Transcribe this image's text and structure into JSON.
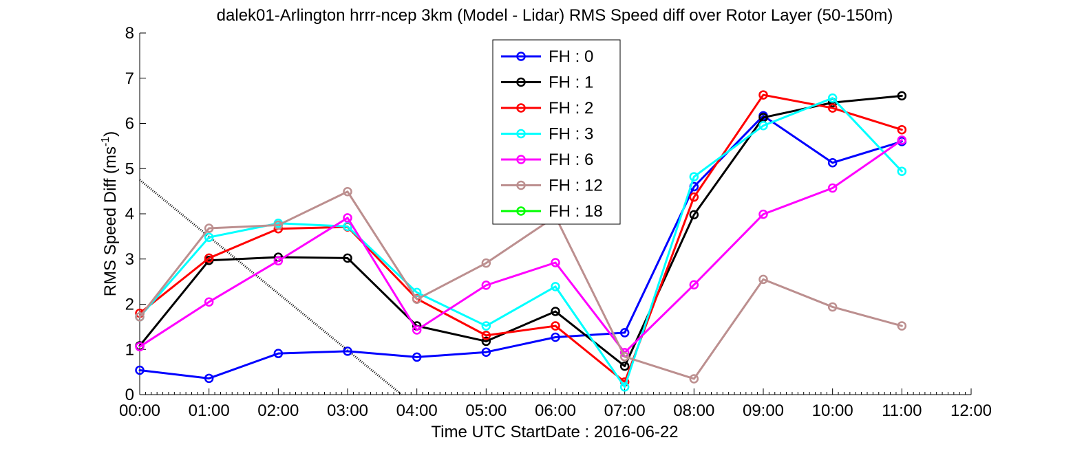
{
  "chart_data": {
    "type": "line",
    "title": "dalek01-Arlington hrrr-ncep 3km (Model - Lidar) RMS Speed diff over Rotor Layer (50-150m)",
    "xlabel": "Time UTC    StartDate : 2016-06-22",
    "ylabel": {
      "main": "RMS Speed Diff (ms",
      "superscript": "-1",
      "close": ")"
    },
    "xlim": [
      0,
      12
    ],
    "ylim": [
      0,
      8
    ],
    "x_ticks": [
      0,
      1,
      2,
      3,
      4,
      5,
      6,
      7,
      8,
      9,
      10,
      11,
      12
    ],
    "x_tick_labels": [
      "00:00",
      "01:00",
      "02:00",
      "03:00",
      "04:00",
      "05:00",
      "06:00",
      "07:00",
      "08:00",
      "09:00",
      "10:00",
      "11:00",
      "12:00"
    ],
    "y_ticks": [
      0,
      1,
      2,
      3,
      4,
      5,
      6,
      7,
      8
    ],
    "y_tick_labels": [
      "0",
      "1",
      "2",
      "3",
      "4",
      "5",
      "6",
      "7",
      "8"
    ],
    "grid": false,
    "legend_position": "top-center",
    "reference_line": {
      "style": "dotted",
      "color": "#000000",
      "points": [
        [
          0,
          4.75
        ],
        [
          3.78,
          0
        ]
      ]
    },
    "series": [
      {
        "name": "FH : 0",
        "color": "#0000ff",
        "x": [
          0,
          1,
          2,
          3,
          4,
          5,
          6,
          7,
          8,
          9,
          10,
          11
        ],
        "y": [
          0.54,
          0.36,
          0.91,
          0.96,
          0.83,
          0.94,
          1.27,
          1.37,
          4.6,
          6.17,
          5.13,
          5.6
        ]
      },
      {
        "name": "FH : 1",
        "color": "#000000",
        "x": [
          0,
          1,
          2,
          3,
          4,
          5,
          6,
          7,
          8,
          9,
          10,
          11
        ],
        "y": [
          1.08,
          2.97,
          3.04,
          3.02,
          1.52,
          1.18,
          1.84,
          0.63,
          3.98,
          6.13,
          6.46,
          6.61
        ]
      },
      {
        "name": "FH : 2",
        "color": "#ff0000",
        "x": [
          0,
          1,
          2,
          3,
          4,
          5,
          6,
          7,
          8,
          9,
          10,
          11
        ],
        "y": [
          1.8,
          3.02,
          3.67,
          3.71,
          2.12,
          1.31,
          1.52,
          0.28,
          4.37,
          6.63,
          6.34,
          5.86
        ]
      },
      {
        "name": "FH : 3",
        "color": "#00ffff",
        "x": [
          0,
          1,
          2,
          3,
          4,
          5,
          6,
          7,
          8,
          9,
          10,
          11
        ],
        "y": [
          1.72,
          3.48,
          3.79,
          3.72,
          2.26,
          1.52,
          2.39,
          0.17,
          4.82,
          5.95,
          6.56,
          4.94
        ]
      },
      {
        "name": "FH : 6",
        "color": "#ff00ff",
        "x": [
          0,
          1,
          2,
          3,
          4,
          5,
          6,
          7,
          8,
          9,
          10,
          11
        ],
        "y": [
          1.06,
          2.05,
          2.96,
          3.91,
          1.43,
          2.42,
          2.92,
          0.93,
          2.43,
          3.99,
          4.57,
          5.63
        ]
      },
      {
        "name": "FH : 12",
        "color": "#bc8f8f",
        "x": [
          0,
          1,
          2,
          3,
          4,
          5,
          6,
          7,
          8,
          9,
          10,
          11
        ],
        "y": [
          1.72,
          3.68,
          3.75,
          4.49,
          2.11,
          2.91,
          3.94,
          0.84,
          0.35,
          2.55,
          1.94,
          1.52
        ]
      },
      {
        "name": "FH : 18",
        "color": "#00ff00",
        "x": [],
        "y": []
      }
    ]
  }
}
